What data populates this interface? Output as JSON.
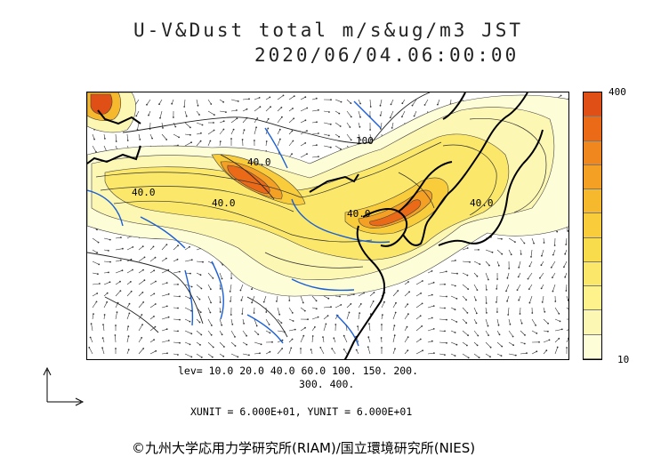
{
  "title": {
    "line1": "U-V&Dust total m/s&ug/m3 JST",
    "line2": "2020/06/04.06:00:00"
  },
  "colorbar": {
    "max_label": "400",
    "min_label": "10",
    "colors": [
      "#fdfdd8",
      "#fdf7b4",
      "#fdf28c",
      "#fbe86a",
      "#f9dc4c",
      "#f8cc3a",
      "#f6b82c",
      "#f4a024",
      "#f0861e",
      "#ea6a18",
      "#e05016"
    ]
  },
  "levels": {
    "line1": "lev= 10.0 20.0 40.0 60.0 100. 150. 200.",
    "line2": "300. 400."
  },
  "units": {
    "text": "XUNIT = 6.000E+01, YUNIT = 6.000E+01"
  },
  "map": {
    "contour_labels": [
      "40.0",
      "40.0",
      "40.0",
      "40.0",
      "100",
      "40.0"
    ],
    "colors": {
      "coast": "#000000",
      "river": "#1a5fd6",
      "border": "#222222"
    }
  },
  "credit": "©九州大学応用力学研究所(RIAM)/国立環境研究所(NIES)"
}
